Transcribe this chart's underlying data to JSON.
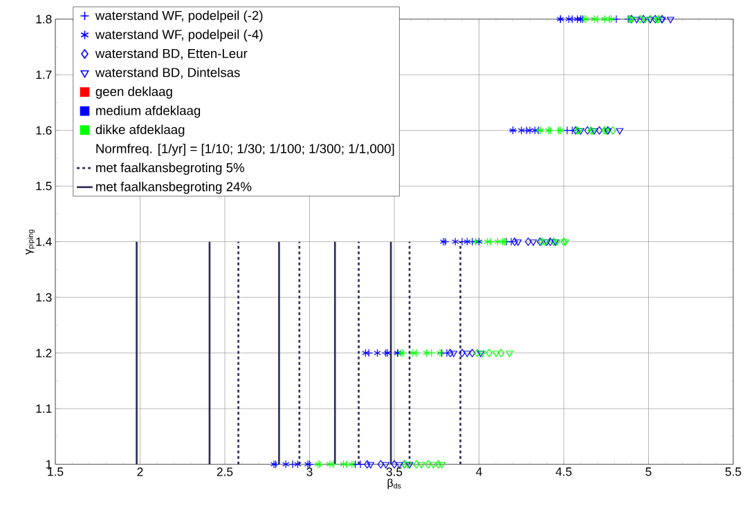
{
  "chart_data": {
    "type": "scatter",
    "xlabel": "β$_{ds}$",
    "ylabel": "γ$_{piping}$",
    "xlim": [
      1.5,
      5.5
    ],
    "ylim": [
      1,
      1.8
    ],
    "xticks": [
      1.5,
      2,
      2.5,
      3,
      3.5,
      4,
      4.5,
      5,
      5.5
    ],
    "yticks": [
      1,
      1.1,
      1.2,
      1.3,
      1.4,
      1.5,
      1.6,
      1.7,
      1.8
    ],
    "grid": true,
    "legend": "top left",
    "annotations": [
      "Normfreq. [1/yr] = [1/10; 1/30; 1/100; 1/300; 1/1,000]"
    ],
    "series": [
      {
        "name": "waterstand WF, podelpeil (-2)",
        "marker": "cross",
        "color": "#0000ff",
        "x": [
          2.8,
          2.9,
          3.0,
          3.27,
          3.3,
          3.06,
          3.14,
          3.22,
          3.35,
          3.45,
          3.52,
          3.78,
          3.81,
          3.55,
          3.63,
          3.72,
          3.8,
          3.9,
          3.96,
          4.16,
          4.19,
          4.0,
          4.07,
          4.14,
          4.2,
          4.28,
          4.35,
          4.52,
          4.55,
          4.36,
          4.42,
          4.47,
          4.48,
          4.55,
          4.61,
          4.81,
          4.88,
          4.62,
          4.7,
          4.77
        ],
        "values": [
          1,
          1,
          1,
          1,
          1,
          1,
          1,
          1,
          1.2,
          1.2,
          1.2,
          1.2,
          1.2,
          1.2,
          1.2,
          1.2,
          1.4,
          1.4,
          1.4,
          1.4,
          1.4,
          1.4,
          1.4,
          1.4,
          1.6,
          1.6,
          1.6,
          1.6,
          1.6,
          1.6,
          1.6,
          1.6,
          1.8,
          1.8,
          1.8,
          1.8,
          1.8,
          1.8,
          1.8,
          1.8
        ],
        "colors": [
          "#0000ff",
          "#0000ff",
          "#0000ff",
          "#0000ff",
          "#0000ff",
          "#00ff00",
          "#00ff00",
          "#00ff00",
          "#0000ff",
          "#0000ff",
          "#0000ff",
          "#0000ff",
          "#0000ff",
          "#00ff00",
          "#00ff00",
          "#00ff00",
          "#0000ff",
          "#0000ff",
          "#0000ff",
          "#0000ff",
          "#0000ff",
          "#00ff00",
          "#00ff00",
          "#00ff00",
          "#0000ff",
          "#0000ff",
          "#0000ff",
          "#0000ff",
          "#0000ff",
          "#00ff00",
          "#00ff00",
          "#00ff00",
          "#0000ff",
          "#0000ff",
          "#0000ff",
          "#0000ff",
          "#0000ff",
          "#00ff00",
          "#00ff00",
          "#00ff00"
        ]
      },
      {
        "name": "waterstand WF, podelpeil (-4)",
        "color": "#0000ff",
        "x": [
          2.79,
          2.86,
          2.93,
          2.99,
          3.05,
          3.12,
          3.2,
          3.25,
          3.33,
          3.4,
          3.46,
          3.52,
          3.54,
          3.61,
          3.69,
          3.77,
          3.79,
          3.86,
          3.93,
          4.0,
          3.98,
          4.05,
          4.11,
          4.15,
          4.2,
          4.25,
          4.3,
          4.33,
          4.36,
          4.41,
          4.48,
          4.48,
          4.53,
          4.58,
          4.6,
          4.63,
          4.68,
          4.74,
          4.78
        ],
        "values": [
          1,
          1,
          1,
          1,
          1,
          1,
          1,
          1,
          1.2,
          1.2,
          1.2,
          1.2,
          1.2,
          1.2,
          1.2,
          1.2,
          1.4,
          1.4,
          1.4,
          1.4,
          1.4,
          1.4,
          1.4,
          1.4,
          1.6,
          1.6,
          1.6,
          1.6,
          1.6,
          1.6,
          1.6,
          1.8,
          1.8,
          1.8,
          1.8,
          1.8,
          1.8,
          1.8,
          1.8
        ],
        "colors": [
          "#0000ff",
          "#0000ff",
          "#0000ff",
          "#0000ff",
          "#00ff00",
          "#00ff00",
          "#00ff00",
          "#00ff00",
          "#0000ff",
          "#0000ff",
          "#0000ff",
          "#0000ff",
          "#00ff00",
          "#00ff00",
          "#00ff00",
          "#00ff00",
          "#0000ff",
          "#0000ff",
          "#0000ff",
          "#0000ff",
          "#00ff00",
          "#00ff00",
          "#00ff00",
          "#00ff00",
          "#0000ff",
          "#0000ff",
          "#0000ff",
          "#0000ff",
          "#00ff00",
          "#00ff00",
          "#00ff00",
          "#0000ff",
          "#0000ff",
          "#0000ff",
          "#0000ff",
          "#00ff00",
          "#00ff00",
          "#00ff00",
          "#00ff00"
        ]
      },
      {
        "name": "waterstand BD, Etten-Leur",
        "marker": "diamond",
        "color": "#0000ff",
        "x": [
          3.34,
          3.42,
          3.5,
          3.56,
          3.56,
          3.63,
          3.7,
          3.76,
          3.83,
          3.9,
          3.96,
          3.99,
          4.06,
          4.13,
          4.21,
          4.29,
          4.36,
          4.42,
          4.37,
          4.44,
          4.5,
          4.57,
          4.64,
          4.71,
          4.76,
          4.58,
          4.66,
          4.74,
          4.79,
          4.9,
          4.97,
          5.04,
          5.08,
          4.89,
          4.95,
          5.01,
          5.06
        ],
        "values": [
          1,
          1,
          1,
          1,
          1,
          1,
          1,
          1,
          1.2,
          1.2,
          1.2,
          1.2,
          1.2,
          1.2,
          1.4,
          1.4,
          1.4,
          1.4,
          1.4,
          1.4,
          1.4,
          1.6,
          1.6,
          1.6,
          1.6,
          1.6,
          1.6,
          1.6,
          1.6,
          1.8,
          1.8,
          1.8,
          1.8,
          1.8,
          1.8,
          1.8,
          1.8
        ],
        "colors": [
          "#0000ff",
          "#0000ff",
          "#0000ff",
          "#0000ff",
          "#00ff00",
          "#00ff00",
          "#00ff00",
          "#00ff00",
          "#0000ff",
          "#0000ff",
          "#0000ff",
          "#00ff00",
          "#00ff00",
          "#00ff00",
          "#0000ff",
          "#0000ff",
          "#0000ff",
          "#0000ff",
          "#00ff00",
          "#00ff00",
          "#00ff00",
          "#0000ff",
          "#0000ff",
          "#0000ff",
          "#0000ff",
          "#00ff00",
          "#00ff00",
          "#00ff00",
          "#00ff00",
          "#0000ff",
          "#0000ff",
          "#0000ff",
          "#0000ff",
          "#00ff00",
          "#00ff00",
          "#00ff00",
          "#00ff00"
        ]
      },
      {
        "name": "waterstand BD, Dintelsas",
        "marker": "triangle",
        "color": "#0000ff",
        "x": [
          3.36,
          3.45,
          3.53,
          3.59,
          3.58,
          3.66,
          3.73,
          3.78,
          3.85,
          3.93,
          4.01,
          4.02,
          4.1,
          4.18,
          4.23,
          4.32,
          4.4,
          4.45,
          4.39,
          4.46,
          4.51,
          4.6,
          4.68,
          4.76,
          4.83,
          4.59,
          4.67,
          4.75,
          4.93,
          5.01,
          5.08,
          5.13,
          4.9,
          4.98,
          5.05
        ],
        "values": [
          1,
          1,
          1,
          1,
          1,
          1,
          1,
          1,
          1.2,
          1.2,
          1.2,
          1.2,
          1.2,
          1.2,
          1.4,
          1.4,
          1.4,
          1.4,
          1.4,
          1.4,
          1.4,
          1.6,
          1.6,
          1.6,
          1.6,
          1.6,
          1.6,
          1.6,
          1.8,
          1.8,
          1.8,
          1.8,
          1.8,
          1.8,
          1.8
        ],
        "colors": [
          "#0000ff",
          "#0000ff",
          "#0000ff",
          "#0000ff",
          "#00ff00",
          "#00ff00",
          "#00ff00",
          "#00ff00",
          "#0000ff",
          "#0000ff",
          "#0000ff",
          "#00ff00",
          "#00ff00",
          "#00ff00",
          "#0000ff",
          "#0000ff",
          "#0000ff",
          "#0000ff",
          "#00ff00",
          "#00ff00",
          "#00ff00",
          "#0000ff",
          "#0000ff",
          "#0000ff",
          "#0000ff",
          "#00ff00",
          "#00ff00",
          "#00ff00",
          "#0000ff",
          "#0000ff",
          "#0000ff",
          "#0000ff",
          "#00ff00",
          "#00ff00",
          "#00ff00"
        ]
      },
      {
        "name": "geen deklaag",
        "marker": "square",
        "color": "#ff0000"
      },
      {
        "name": "medium afdeklaag",
        "marker": "square",
        "color": "#0000ff"
      },
      {
        "name": "dikke afdeklaag",
        "marker": "square",
        "color": "#00ff00"
      },
      {
        "name": "met faalkansbegroting 5%",
        "type": "line",
        "line_style": "dashed",
        "color": "#2e2e5c",
        "x": [
          2.58,
          2.58
        ],
        "values": [
          1,
          1.4
        ]
      },
      {
        "type": "line",
        "line_style": "dashed",
        "color": "#2e2e5c",
        "x": [
          2.94,
          2.94
        ],
        "values": [
          1,
          1.4
        ]
      },
      {
        "type": "line",
        "line_style": "dashed",
        "color": "#2e2e5c",
        "x": [
          3.29,
          3.29
        ],
        "values": [
          1,
          1.4
        ]
      },
      {
        "type": "line",
        "line_style": "dashed",
        "color": "#2e2e5c",
        "x": [
          3.59,
          3.59
        ],
        "values": [
          1,
          1.4
        ]
      },
      {
        "type": "line",
        "line_style": "dashed",
        "color": "#2e2e5c",
        "x": [
          3.89,
          3.89
        ],
        "values": [
          1,
          1.4
        ]
      },
      {
        "name": "met faalkansbegroting 24%",
        "type": "line",
        "line_style": "solid",
        "color": "#2e2e5c",
        "x": [
          1.98,
          1.98
        ],
        "values": [
          1,
          1.4
        ]
      },
      {
        "type": "line",
        "line_style": "solid",
        "color": "#2e2e5c",
        "x": [
          2.41,
          2.41
        ],
        "values": [
          1,
          1.4
        ]
      },
      {
        "type": "line",
        "line_style": "solid",
        "color": "#2e2e5c",
        "x": [
          2.82,
          2.82
        ],
        "values": [
          1,
          1.4
        ]
      },
      {
        "type": "line",
        "line_style": "solid",
        "color": "#2e2e5c",
        "x": [
          3.15,
          3.15
        ],
        "values": [
          1,
          1.4
        ]
      },
      {
        "type": "line",
        "line_style": "solid",
        "color": "#2e2e5c",
        "x": [
          3.48,
          3.48
        ],
        "values": [
          1,
          1.4
        ]
      }
    ]
  }
}
